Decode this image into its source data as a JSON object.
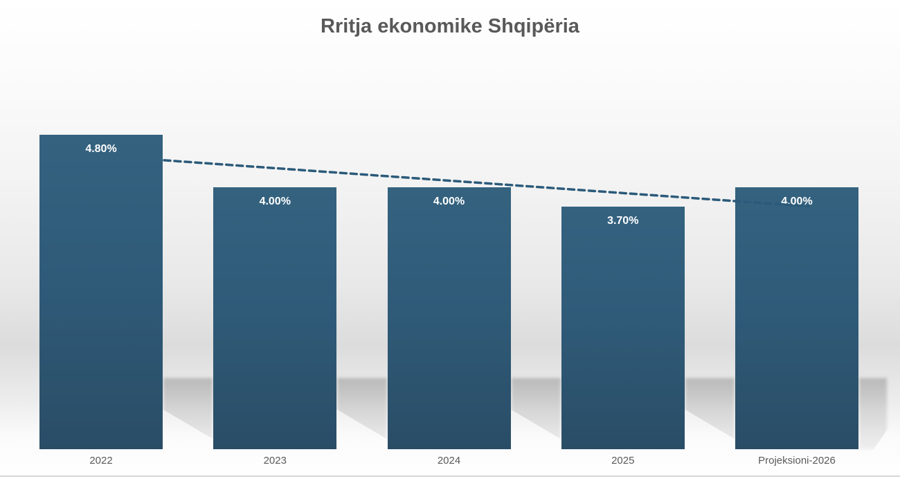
{
  "chart_data": {
    "type": "bar",
    "title": "Rritja ekonomike Shqipëria",
    "categories": [
      "2022",
      "2023",
      "2024",
      "2025",
      "Projeksioni-2026"
    ],
    "values": [
      4.8,
      4.0,
      4.0,
      3.7,
      4.0
    ],
    "value_labels": [
      "4.80%",
      "4.00%",
      "4.00%",
      "3.70%",
      "4.00%"
    ],
    "xlabel": "",
    "ylabel": "",
    "ylim": [
      0,
      5.0
    ],
    "grid": false,
    "legend": false,
    "trendline": {
      "style": "dashed",
      "type": "linear-declining",
      "color": "#2b5a7a"
    },
    "colors": {
      "bar_top": "#34627f",
      "bar_bottom": "#2a4d66",
      "value_label": "#ffffff",
      "category_label": "#595959",
      "title": "#595959",
      "bottom_border": "#d7d7d7"
    }
  }
}
